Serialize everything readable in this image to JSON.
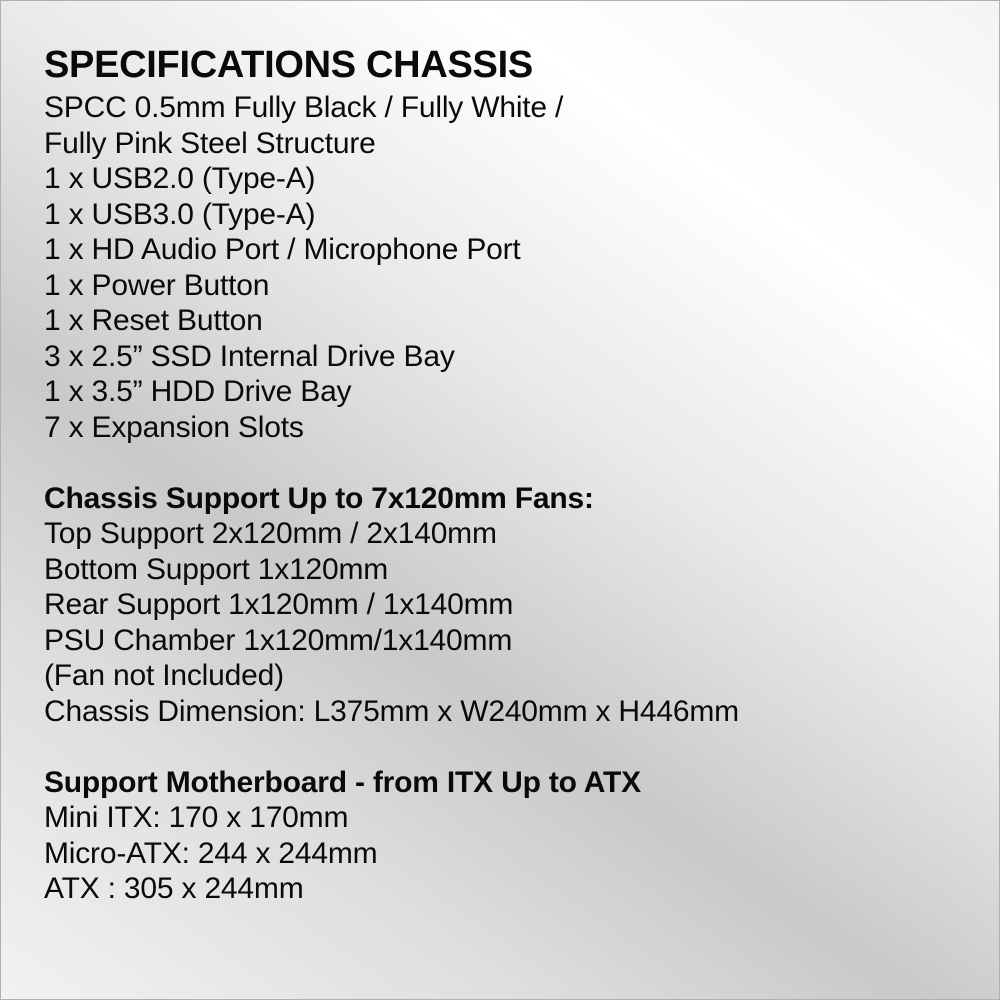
{
  "title": "SPECIFICATIONS CHASSIS",
  "sections": [
    {
      "heading": "",
      "lines": [
        "SPCC 0.5mm Fully Black / Fully White /",
        "Fully Pink Steel Structure",
        "1 x USB2.0 (Type-A)",
        "1 x USB3.0 (Type-A)",
        "1 x HD Audio Port / Microphone Port",
        "1 x Power Button",
        "1 x Reset Button",
        "3 x 2.5” SSD Internal Drive Bay",
        "1 x 3.5” HDD Drive Bay",
        "7 x Expansion Slots"
      ]
    },
    {
      "heading": "Chassis Support Up to 7x120mm Fans:",
      "lines": [
        "Top Support 2x120mm / 2x140mm",
        "Bottom Support 1x120mm",
        "Rear Support 1x120mm / 1x140mm",
        "PSU Chamber 1x120mm/1x140mm",
        "(Fan not Included)",
        "Chassis Dimension: L375mm x W240mm x H446mm"
      ]
    },
    {
      "heading": "Support Motherboard - from ITX Up to ATX",
      "lines": [
        "Mini ITX: 170 x 170mm",
        "Micro-ATX: 244 x 244mm",
        "ATX : 305 x 244mm"
      ]
    }
  ]
}
